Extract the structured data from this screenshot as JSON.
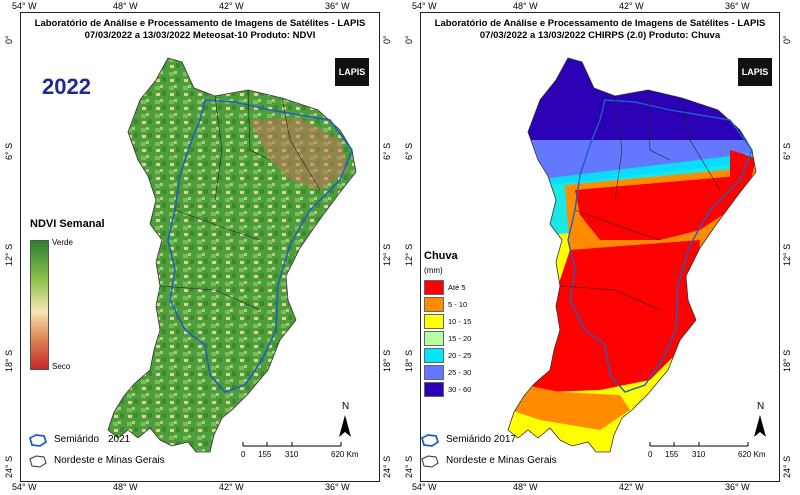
{
  "left": {
    "title_line1": "Laboratório de Análise e Processamento de Imagens de Satélites - LAPIS",
    "title_line2": "07/03/2022  a  13/03/2022          Meteosat-10          Produto: NDVI",
    "year_label": "2022",
    "legend_title": "NDVI Semanal",
    "legend_high": "Verde",
    "legend_low": "Seco",
    "semiarid_label": "Semiárido",
    "semiarid_year": "2021",
    "region_label": "Nordeste e Minas Gerais",
    "logo": "LAPIS"
  },
  "right": {
    "title_line1": "Laboratório de Análise e Processamento de Imagens de Satélites - LAPIS",
    "title_line2": "07/03/2022  a  13/03/2022          CHIRPS (2.0)     Produto: Chuva",
    "legend_title": "Chuva",
    "legend_unit": "(mm)",
    "legend_classes": [
      {
        "label": "Até 5",
        "color": "#ff0000"
      },
      {
        "label": "5 - 10",
        "color": "#ff8c00"
      },
      {
        "label": "10 - 15",
        "color": "#ffff00"
      },
      {
        "label": "15 - 20",
        "color": "#b4ffa0"
      },
      {
        "label": "20 - 25",
        "color": "#00e6ff"
      },
      {
        "label": "25 - 30",
        "color": "#6478ff"
      },
      {
        "label": "30 - 60",
        "color": "#2c00b4"
      }
    ],
    "semiarid_label": "Semiárido 2017",
    "region_label": "Nordeste e Minas Gerais",
    "logo": "LAPIS"
  },
  "axes": {
    "lon_ticks": [
      "54° W",
      "48° W",
      "42° W",
      "36° W"
    ],
    "lat_ticks": [
      "0°",
      "6° S",
      "12° S",
      "18° S",
      "24° S"
    ]
  },
  "scale": {
    "ticks": [
      "0",
      "155",
      "310",
      "620 Km"
    ]
  },
  "north_label": "N",
  "colors": {
    "semiarid_border": "#1f5fbf",
    "year_text": "#1f2b8e"
  }
}
